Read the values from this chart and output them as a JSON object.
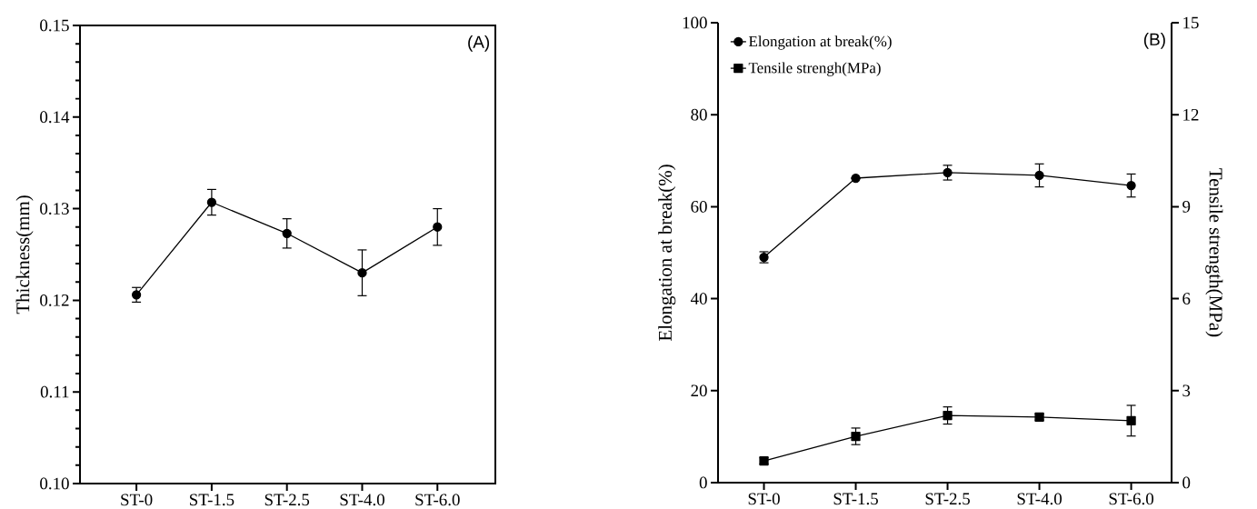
{
  "chart_data": [
    {
      "type": "line",
      "ylabel": "Thickness(mm)",
      "categories": [
        "ST-0",
        "ST-1.5",
        "ST-2.5",
        "ST-4.0",
        "ST-6.0"
      ],
      "series": [
        {
          "color": "#000000",
          "marker": "circle",
          "values": [
            0.1206,
            0.1307,
            0.1273,
            0.123,
            0.128
          ],
          "errors": [
            0.0008,
            0.0014,
            0.0016,
            0.0025,
            0.002
          ]
        }
      ],
      "ylim": [
        0.1,
        0.15
      ],
      "yticks": [
        {
          "value": 0.1,
          "label": "0.10"
        },
        0.11,
        0.12,
        0.13,
        0.14,
        0.15
      ],
      "annotations": [
        "(A)"
      ],
      "line_style": "solid"
    },
    {
      "type": "line",
      "ylabel": "Elongation at break(%)",
      "y2label": "Tensile strength(MPa)",
      "categories": [
        "ST-0",
        "ST-1.5",
        "ST-2.5",
        "ST-4.0",
        "ST-6.0"
      ],
      "series": [
        {
          "name": "Elongation at break(%)",
          "color": "#000000",
          "marker": "circle",
          "values": [
            49.0,
            66.2,
            67.4,
            66.8,
            64.6
          ],
          "errors": [
            1.2,
            null,
            1.6,
            2.5,
            2.5
          ]
        },
        {
          "name": "Tensile strengh(MPa)",
          "color": "#000000",
          "marker": "square",
          "axis": "y2",
          "values": [
            0.71,
            1.51,
            2.19,
            2.14,
            2.02
          ],
          "errors": [
            0.1,
            0.27,
            0.28,
            0.1,
            0.5
          ]
        }
      ],
      "ylim": [
        0,
        100
      ],
      "yticks": [
        0,
        20,
        40,
        60,
        80,
        100
      ],
      "y2lim": [
        0,
        15
      ],
      "y2ticks": [
        0,
        3,
        6,
        9,
        12,
        15
      ],
      "legend": "top left",
      "annotations": [
        "(B)"
      ],
      "line_style": "solid"
    }
  ]
}
